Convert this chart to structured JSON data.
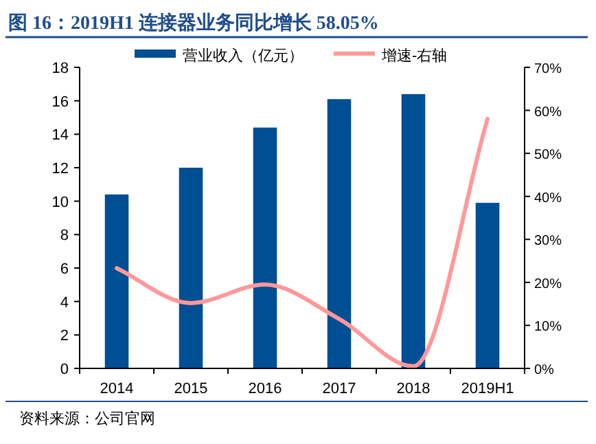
{
  "chart_data": {
    "type": "bar",
    "title": "图 16：2019H1 连接器业务同比增长 58.05%",
    "categories": [
      "2014",
      "2015",
      "2016",
      "2017",
      "2018",
      "2019H1"
    ],
    "series": [
      {
        "name": "营业收入（亿元）",
        "color": "#004e94",
        "values": [
          10.4,
          12.0,
          14.4,
          16.1,
          16.4,
          9.9
        ]
      },
      {
        "name": "增速-右轴",
        "type": "line",
        "axis": "y2",
        "color": "#ff9999",
        "values": [
          23.3,
          15.2,
          19.5,
          11.5,
          0.5,
          58
        ]
      }
    ],
    "ylim": [
      0,
      18
    ],
    "yticks": [
      0,
      2,
      4,
      6,
      8,
      10,
      12,
      14,
      16,
      18
    ],
    "y2lim": [
      0,
      70
    ],
    "y2ticks": [
      {
        "value": 0,
        "label": "0%"
      },
      {
        "value": 10,
        "label": "10%"
      },
      {
        "value": 20,
        "label": "20%"
      },
      {
        "value": 30,
        "label": "30%"
      },
      {
        "value": 40,
        "label": "40%"
      },
      {
        "value": 50,
        "label": "50%"
      },
      {
        "value": 60,
        "label": "60%"
      },
      {
        "value": 70,
        "label": "70%"
      }
    ],
    "legend": "top",
    "grid": false,
    "marker": "none",
    "annotations": [
      "资料来源：公司官网"
    ]
  }
}
